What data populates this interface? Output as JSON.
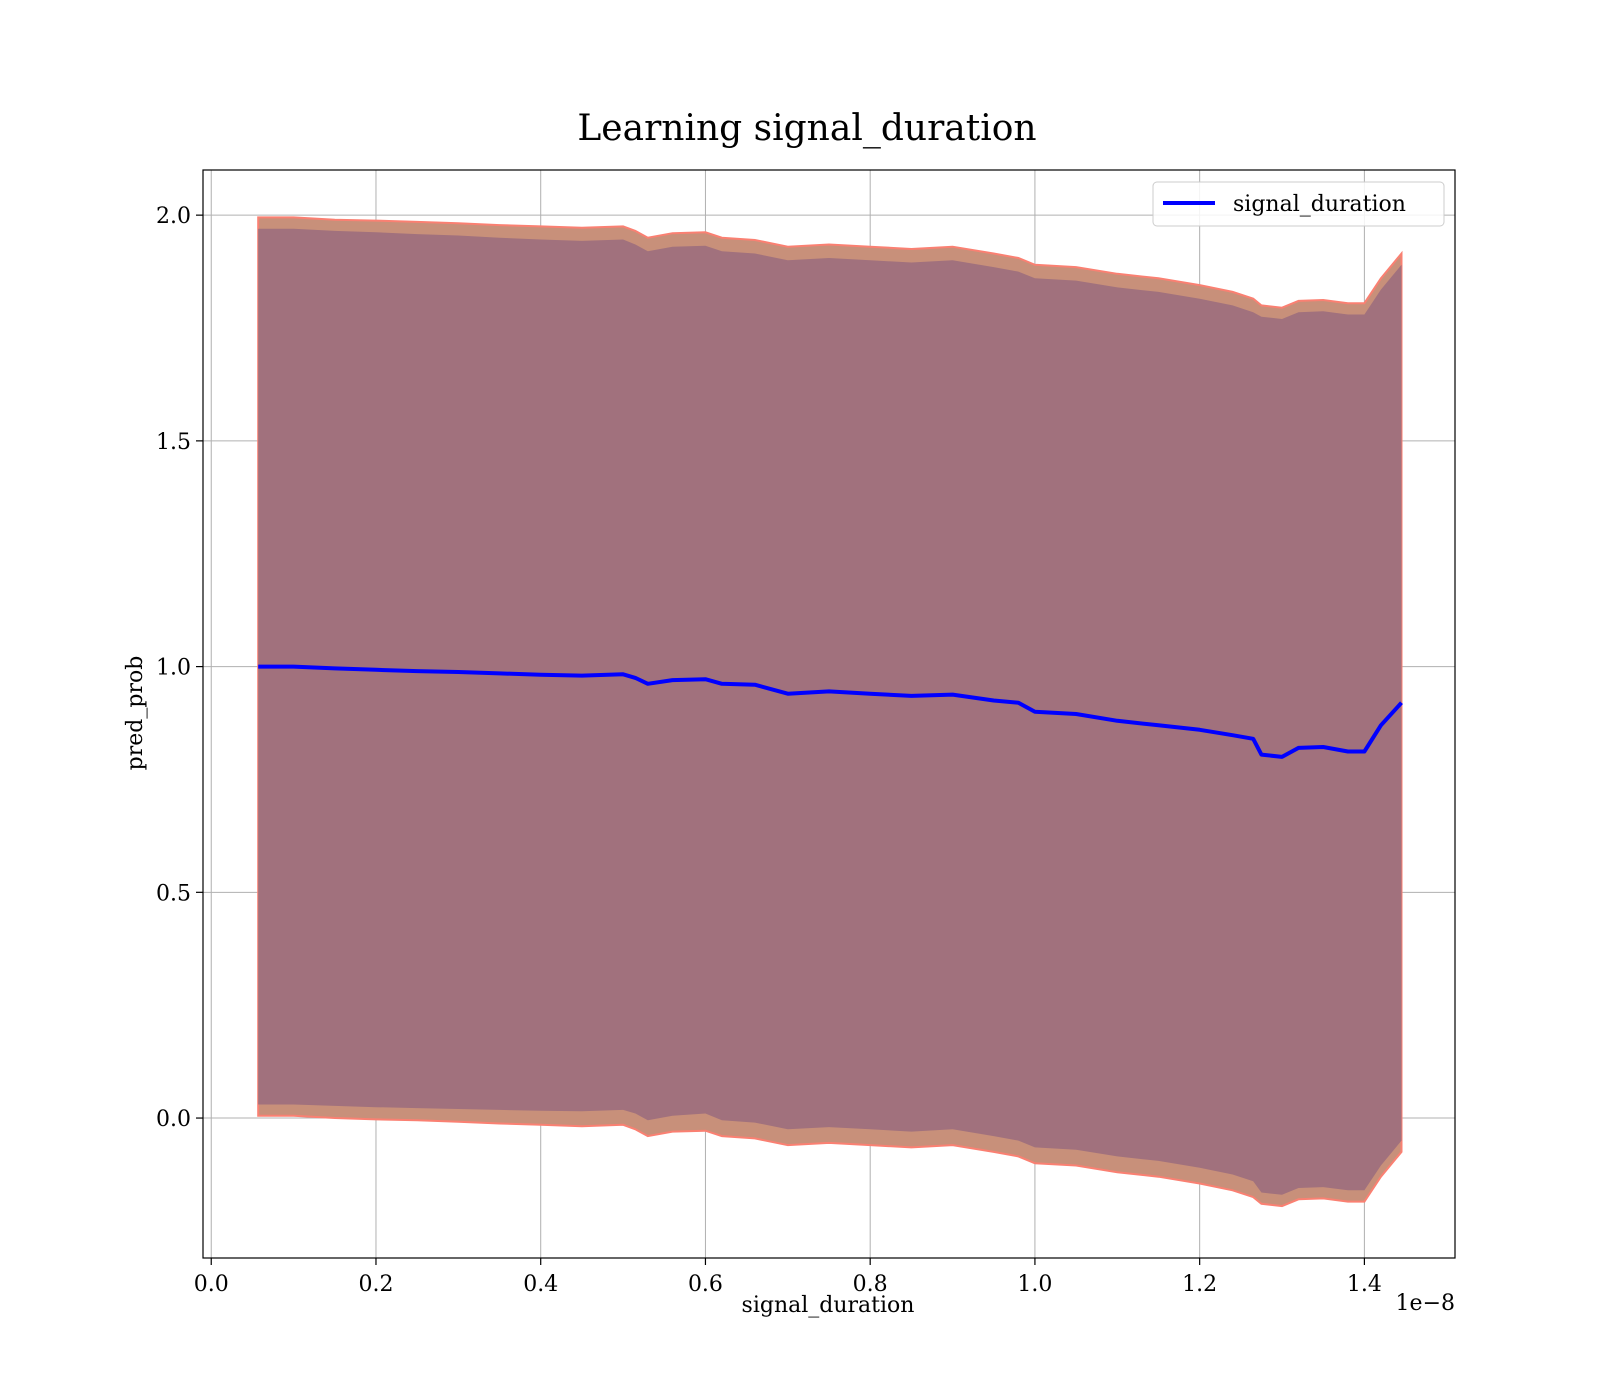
{
  "chart_data": {
    "type": "line",
    "title": "Learning signal_duration",
    "xlabel": "signal_duration",
    "ylabel": "pred_prob",
    "x_offset_text": "1e−8",
    "xlim": [
      -0.01,
      1.51
    ],
    "ylim": [
      -0.31,
      2.1
    ],
    "xticks": [
      0.0,
      0.2,
      0.4,
      0.6,
      0.8,
      1.0,
      1.2,
      1.4
    ],
    "xtick_labels": [
      "0.0",
      "0.2",
      "0.4",
      "0.6",
      "0.8",
      "1.0",
      "1.2",
      "1.4"
    ],
    "yticks": [
      0.0,
      0.5,
      1.0,
      1.5,
      2.0
    ],
    "ytick_labels": [
      "0.0",
      "0.5",
      "1.0",
      "1.5",
      "2.0"
    ],
    "grid": true,
    "legend_position": "top-right",
    "series": [
      {
        "name": "signal_duration",
        "color": "#0000ff",
        "x": [
          0.057,
          0.1,
          0.15,
          0.2,
          0.25,
          0.3,
          0.35,
          0.4,
          0.45,
          0.5,
          0.515,
          0.53,
          0.56,
          0.6,
          0.62,
          0.66,
          0.7,
          0.75,
          0.8,
          0.85,
          0.9,
          0.95,
          0.98,
          1.0,
          1.05,
          1.1,
          1.15,
          1.2,
          1.24,
          1.265,
          1.275,
          1.3,
          1.32,
          1.35,
          1.38,
          1.4,
          1.42,
          1.445
        ],
        "y": [
          1.0,
          1.0,
          0.996,
          0.993,
          0.99,
          0.988,
          0.985,
          0.982,
          0.98,
          0.983,
          0.975,
          0.962,
          0.97,
          0.972,
          0.962,
          0.96,
          0.94,
          0.945,
          0.94,
          0.935,
          0.938,
          0.925,
          0.92,
          0.9,
          0.895,
          0.88,
          0.87,
          0.86,
          0.848,
          0.84,
          0.805,
          0.8,
          0.82,
          0.822,
          0.812,
          0.812,
          0.87,
          0.92
        ]
      }
    ],
    "bands": [
      {
        "role": "outer",
        "color": "#fa8072",
        "x": [
          0.057,
          0.1,
          0.15,
          0.2,
          0.25,
          0.3,
          0.35,
          0.4,
          0.45,
          0.5,
          0.515,
          0.53,
          0.56,
          0.6,
          0.62,
          0.66,
          0.7,
          0.75,
          0.8,
          0.85,
          0.9,
          0.95,
          0.98,
          1.0,
          1.05,
          1.1,
          1.15,
          1.2,
          1.24,
          1.265,
          1.275,
          1.3,
          1.32,
          1.35,
          1.38,
          1.4,
          1.42,
          1.445
        ],
        "upper": [
          1.995,
          1.995,
          1.99,
          1.988,
          1.985,
          1.982,
          1.978,
          1.975,
          1.972,
          1.975,
          1.965,
          1.95,
          1.96,
          1.962,
          1.95,
          1.945,
          1.93,
          1.935,
          1.93,
          1.925,
          1.93,
          1.915,
          1.905,
          1.89,
          1.885,
          1.87,
          1.86,
          1.845,
          1.83,
          1.815,
          1.8,
          1.795,
          1.81,
          1.812,
          1.805,
          1.805,
          1.86,
          1.915
        ],
        "lower": [
          0.005,
          0.005,
          0.0,
          -0.003,
          -0.005,
          -0.008,
          -0.012,
          -0.015,
          -0.018,
          -0.015,
          -0.025,
          -0.04,
          -0.03,
          -0.028,
          -0.04,
          -0.045,
          -0.06,
          -0.055,
          -0.06,
          -0.065,
          -0.06,
          -0.075,
          -0.085,
          -0.1,
          -0.105,
          -0.12,
          -0.13,
          -0.145,
          -0.16,
          -0.175,
          -0.19,
          -0.195,
          -0.18,
          -0.178,
          -0.185,
          -0.185,
          -0.13,
          -0.075
        ]
      },
      {
        "role": "inner",
        "color": "#a1717d",
        "x": [
          0.057,
          0.1,
          0.15,
          0.2,
          0.25,
          0.3,
          0.35,
          0.4,
          0.45,
          0.5,
          0.515,
          0.53,
          0.56,
          0.6,
          0.62,
          0.66,
          0.7,
          0.75,
          0.8,
          0.85,
          0.9,
          0.95,
          0.98,
          1.0,
          1.05,
          1.1,
          1.15,
          1.2,
          1.24,
          1.265,
          1.275,
          1.3,
          1.32,
          1.35,
          1.38,
          1.4,
          1.42,
          1.445
        ],
        "upper": [
          1.97,
          1.97,
          1.965,
          1.962,
          1.958,
          1.955,
          1.95,
          1.946,
          1.943,
          1.946,
          1.935,
          1.92,
          1.93,
          1.932,
          1.92,
          1.915,
          1.9,
          1.905,
          1.9,
          1.895,
          1.9,
          1.885,
          1.875,
          1.86,
          1.855,
          1.84,
          1.83,
          1.815,
          1.8,
          1.785,
          1.775,
          1.77,
          1.785,
          1.787,
          1.78,
          1.78,
          1.835,
          1.89
        ],
        "lower": [
          0.03,
          0.03,
          0.027,
          0.024,
          0.022,
          0.02,
          0.018,
          0.016,
          0.015,
          0.018,
          0.01,
          -0.005,
          0.005,
          0.01,
          -0.005,
          -0.01,
          -0.025,
          -0.02,
          -0.025,
          -0.03,
          -0.025,
          -0.04,
          -0.05,
          -0.065,
          -0.07,
          -0.085,
          -0.095,
          -0.11,
          -0.125,
          -0.14,
          -0.165,
          -0.17,
          -0.155,
          -0.153,
          -0.16,
          -0.16,
          -0.105,
          -0.05
        ]
      }
    ]
  }
}
